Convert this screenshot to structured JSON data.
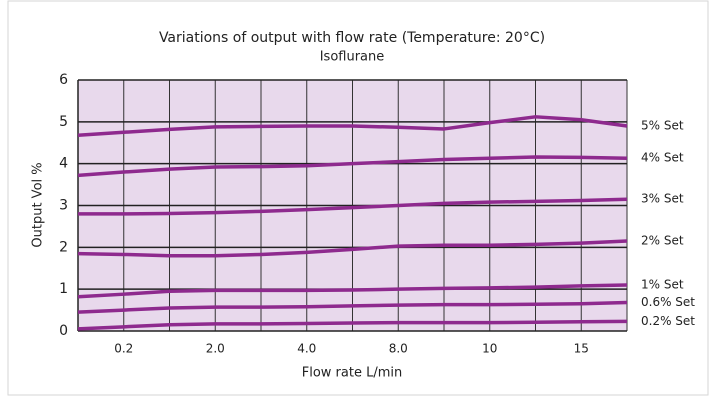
{
  "chart_data": {
    "type": "line",
    "title": "Variations of output with flow rate (Temperature: 20°C)",
    "subtitle": "Isoflurane",
    "x_label": "Flow rate L/min",
    "y_label": "Output Vol %",
    "categories": [
      null,
      "0.2",
      null,
      "2.0",
      null,
      "4.0",
      null,
      "8.0",
      null,
      "10",
      null,
      "15",
      null
    ],
    "ylim": [
      0,
      6
    ],
    "yticks": [
      0,
      1,
      2,
      3,
      4,
      5,
      6
    ],
    "grid": true,
    "series": [
      {
        "name": "5% Set",
        "color": "#8e2a8e",
        "values": [
          4.68,
          4.75,
          4.82,
          4.88,
          4.89,
          4.9,
          4.9,
          4.87,
          4.83,
          4.98,
          5.12,
          5.05,
          4.9
        ]
      },
      {
        "name": "4% Set",
        "color": "#8e2a8e",
        "values": [
          3.72,
          3.8,
          3.87,
          3.92,
          3.93,
          3.95,
          4.0,
          4.05,
          4.1,
          4.13,
          4.16,
          4.15,
          4.13
        ]
      },
      {
        "name": "3% Set",
        "color": "#8e2a8e",
        "values": [
          2.8,
          2.8,
          2.81,
          2.83,
          2.86,
          2.9,
          2.95,
          3.0,
          3.05,
          3.08,
          3.1,
          3.12,
          3.15
        ]
      },
      {
        "name": "2% Set",
        "color": "#8e2a8e",
        "values": [
          1.85,
          1.83,
          1.8,
          1.8,
          1.83,
          1.88,
          1.95,
          2.03,
          2.05,
          2.05,
          2.07,
          2.1,
          2.15
        ]
      },
      {
        "name": "1% Set",
        "color": "#8e2a8e",
        "values": [
          0.82,
          0.88,
          0.95,
          0.97,
          0.97,
          0.97,
          0.98,
          1.0,
          1.02,
          1.03,
          1.05,
          1.08,
          1.1
        ]
      },
      {
        "name": "0.6% Set",
        "color": "#8e2a8e",
        "values": [
          0.45,
          0.5,
          0.55,
          0.57,
          0.57,
          0.58,
          0.6,
          0.62,
          0.63,
          0.63,
          0.64,
          0.65,
          0.68
        ]
      },
      {
        "name": "0.2% Set",
        "color": "#8e2a8e",
        "values": [
          0.05,
          0.1,
          0.15,
          0.17,
          0.17,
          0.18,
          0.19,
          0.2,
          0.2,
          0.2,
          0.21,
          0.22,
          0.23
        ]
      }
    ]
  }
}
